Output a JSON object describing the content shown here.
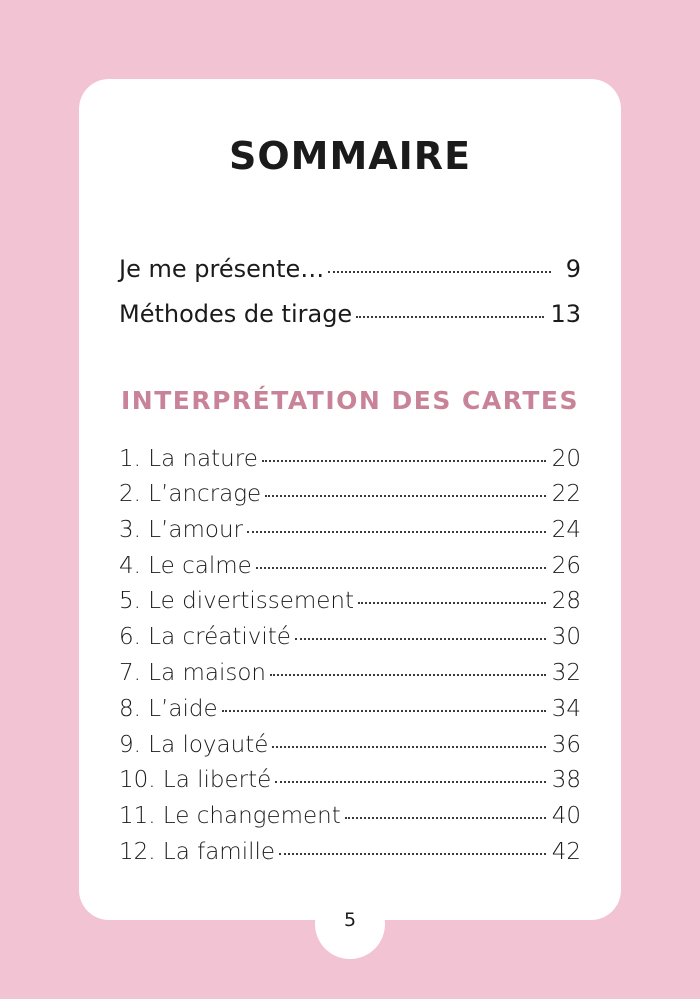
{
  "title": "SOMMAIRE",
  "intro_entries": [
    {
      "label": "Je me présente…",
      "page": "9"
    },
    {
      "label": "Méthodes de tirage",
      "page": "13"
    }
  ],
  "section": {
    "heading": "INTERPRÉTATION DES CARTES",
    "entries": [
      {
        "label": "1.  La nature",
        "page": "20"
      },
      {
        "label": "2. L’ancrage",
        "page": "22"
      },
      {
        "label": "3. L’amour",
        "page": "24"
      },
      {
        "label": "4. Le calme",
        "page": "26"
      },
      {
        "label": "5. Le divertissement",
        "page": "28"
      },
      {
        "label": "6. La créativité",
        "page": "30"
      },
      {
        "label": "7. La maison",
        "page": "32"
      },
      {
        "label": "8. L’aide",
        "page": "34"
      },
      {
        "label": "9. La loyauté",
        "page": "36"
      },
      {
        "label": "10.  La liberté",
        "page": "38"
      },
      {
        "label": "11.  Le changement",
        "page": "40"
      },
      {
        "label": "12.  La famille",
        "page": "42"
      }
    ]
  },
  "page_number": "5",
  "colors": {
    "background": "#f2c3d2",
    "card": "#ffffff",
    "heading_accent": "#c98398",
    "text": "#1b1b1b"
  }
}
